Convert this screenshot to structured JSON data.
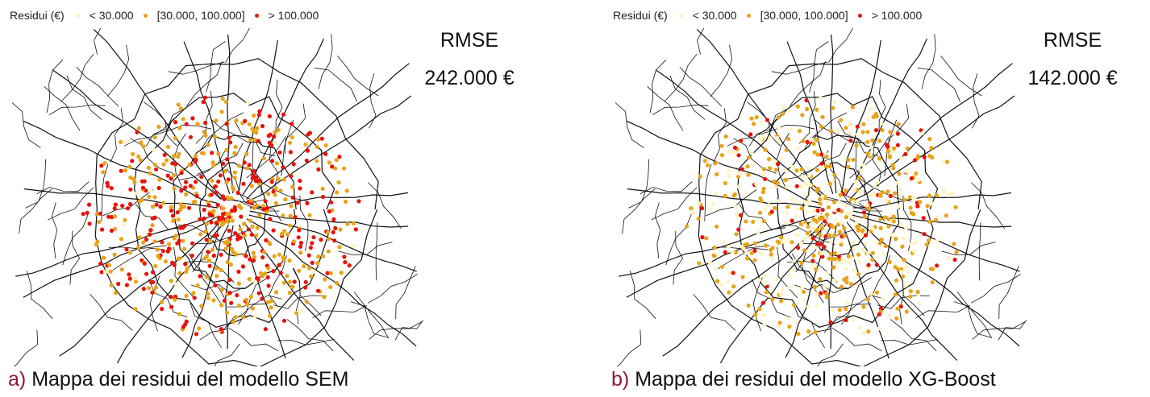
{
  "panels": [
    {
      "legend": {
        "title": "Residui (€)",
        "items": [
          {
            "label": "< 30.000",
            "color": "#fff3c4"
          },
          {
            "label": "[30.000, 100.000]",
            "color": "#e8a317"
          },
          {
            "label": "> 100.000",
            "color": "#e8120c"
          }
        ]
      },
      "metric": {
        "label": "RMSE",
        "value": "242.000 €"
      },
      "caption": {
        "letter": "a)",
        "text": "Mappa dei residui del modello SEM"
      }
    },
    {
      "legend": {
        "title": "Residui (€)",
        "items": [
          {
            "label": "< 30.000",
            "color": "#fff3c4"
          },
          {
            "label": "[30.000, 100.000]",
            "color": "#e8a317"
          },
          {
            "label": "> 100.000",
            "color": "#e8120c"
          }
        ]
      },
      "metric": {
        "label": "RMSE",
        "value": "142.000 €"
      },
      "caption": {
        "letter": "b)",
        "text": "Mappa dei residui del modello XG-Boost"
      }
    }
  ]
}
